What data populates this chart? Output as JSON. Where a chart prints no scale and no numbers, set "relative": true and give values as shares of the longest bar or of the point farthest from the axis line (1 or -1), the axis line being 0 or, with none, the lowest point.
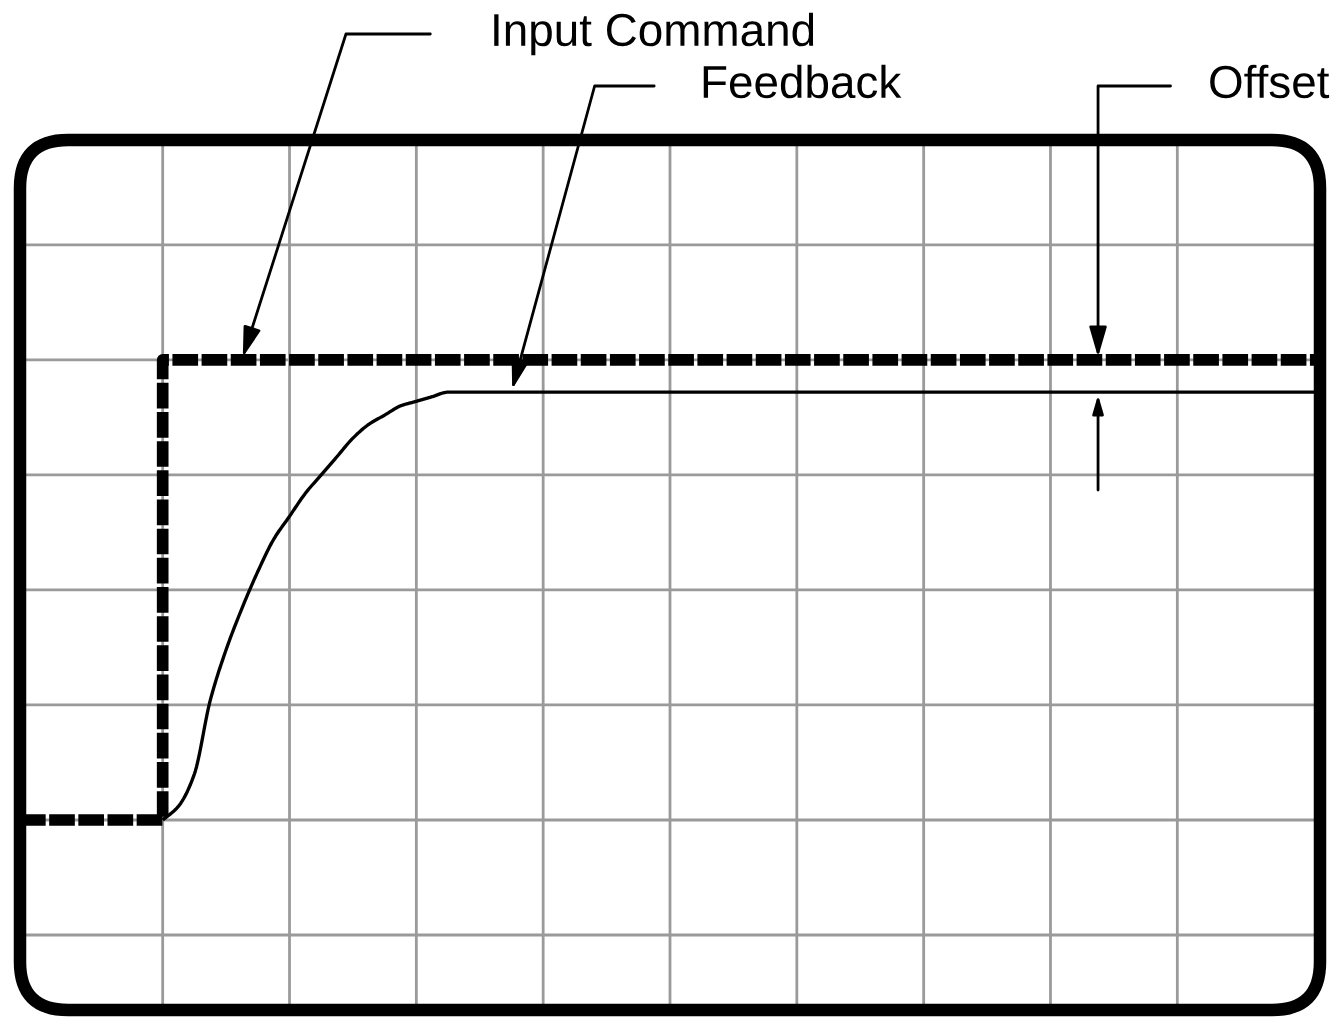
{
  "chart_data": {
    "type": "line",
    "relative": true,
    "categories": [
      null,
      null,
      null,
      null,
      null,
      null,
      null,
      null,
      null,
      null,
      null,
      null,
      null,
      null,
      null,
      null,
      null,
      null,
      null,
      null,
      null,
      null,
      null,
      null,
      null,
      null,
      null,
      null,
      null,
      null,
      null,
      null,
      null,
      null,
      null,
      null,
      null,
      null,
      null,
      null,
      null,
      null,
      null,
      null,
      null,
      null,
      null,
      null,
      null,
      null,
      null,
      null,
      null,
      null,
      null,
      null,
      null,
      null,
      null,
      null,
      null,
      null,
      null,
      null,
      null,
      null,
      null,
      null,
      null,
      null,
      null,
      null,
      null,
      null,
      null,
      null,
      null,
      null,
      null,
      null,
      null,
      null,
      null
    ],
    "series": [
      {
        "type": "step",
        "color": "#000000",
        "line_style": "dashed",
        "values": [
          0,
          0,
          0,
          0,
          0,
          0,
          0,
          0,
          0,
          1,
          1,
          1,
          1,
          1,
          1,
          1,
          1,
          1,
          1,
          1,
          1,
          1,
          1,
          1,
          1,
          1,
          1,
          1,
          1,
          1,
          1,
          1,
          1,
          1,
          1,
          1,
          1,
          1,
          1,
          1,
          1,
          1,
          1,
          1,
          1,
          1,
          1,
          1,
          1,
          1,
          1,
          1,
          1,
          1,
          1,
          1,
          1,
          1,
          1,
          1,
          1,
          1,
          1,
          1,
          1,
          1,
          1,
          1,
          1,
          1,
          1,
          1,
          1,
          1,
          1,
          1,
          1,
          1,
          1,
          1,
          1,
          1,
          1
        ]
      },
      {
        "color": "#000000",
        "line_style": "solid",
        "values": [
          null,
          null,
          null,
          null,
          null,
          null,
          null,
          null,
          null,
          0,
          0.03,
          0.1,
          0.26,
          0.37,
          0.46,
          0.54,
          0.61,
          0.66,
          0.71,
          0.75,
          0.79,
          0.83,
          0.86,
          0.88,
          0.9,
          0.91,
          0.92,
          0.93,
          0.93,
          0.93,
          0.93,
          0.93,
          0.93,
          0.93,
          0.93,
          0.93,
          0.93,
          0.93,
          0.93,
          0.93,
          0.93,
          0.93,
          0.93,
          0.93,
          0.93,
          0.93,
          0.93,
          0.93,
          0.93,
          0.93,
          0.93,
          0.93,
          0.93,
          0.93,
          0.93,
          0.93,
          0.93,
          0.93,
          0.93,
          0.93,
          0.93,
          0.93,
          0.93,
          0.93,
          0.93,
          0.93,
          0.93,
          0.93,
          0.93,
          0.93,
          0.93,
          0.93,
          0.93,
          0.93,
          0.93,
          0.93,
          0.93,
          0.93,
          0.93,
          0.93,
          0.93,
          0.93,
          0.93
        ]
      }
    ],
    "grid": true,
    "tick_labels": false,
    "annotations": [
      "Input Command",
      "Feedback",
      "Offset"
    ]
  }
}
